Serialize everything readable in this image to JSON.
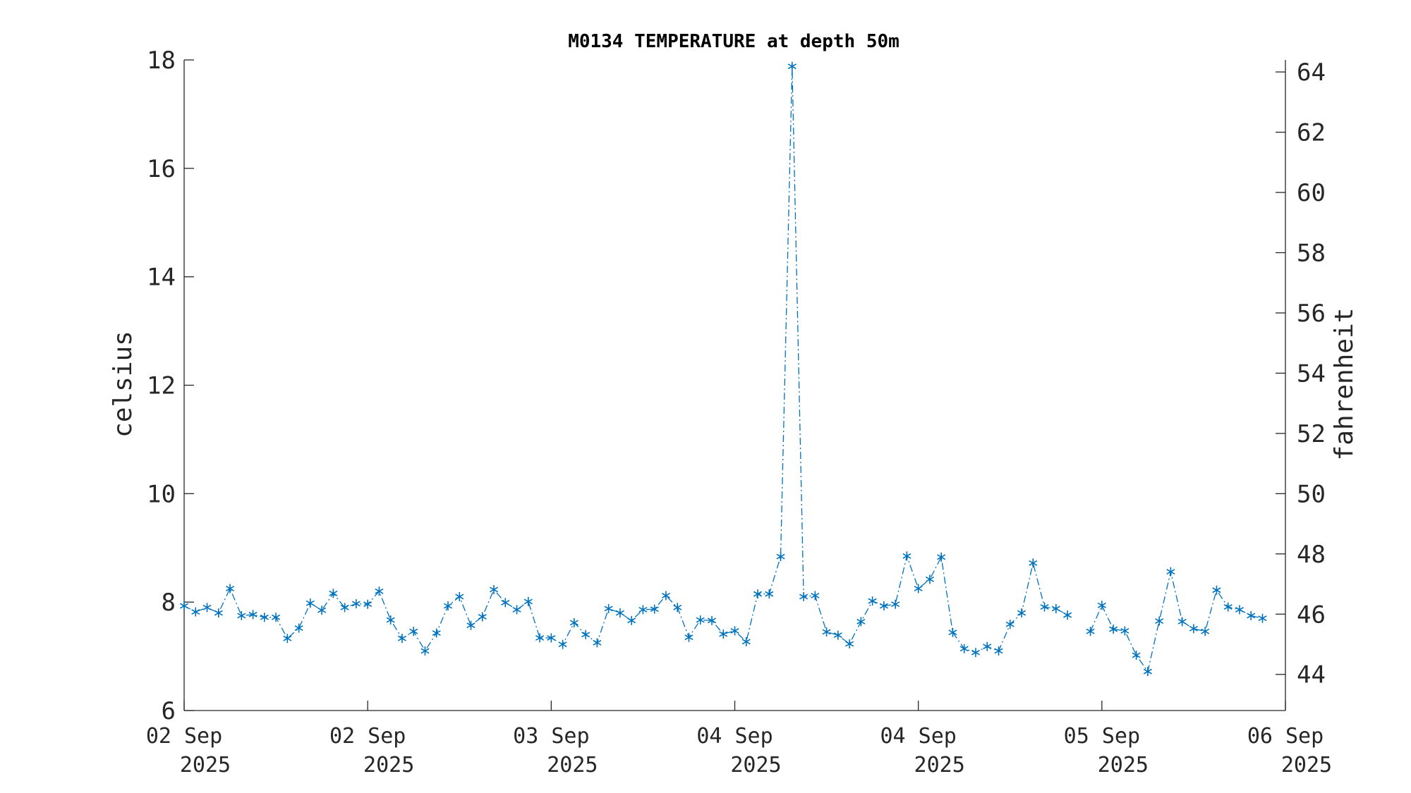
{
  "chart_data": {
    "type": "line",
    "title": "M0134 TEMPERATURE at depth 50m",
    "xlabel": "",
    "ylabel": "celsius",
    "y2label": "fahrenheit",
    "ylim": [
      6,
      18
    ],
    "y2lim": [
      42.8,
      64.4
    ],
    "yticks": [
      6,
      8,
      10,
      12,
      14,
      16,
      18
    ],
    "y2ticks": [
      44,
      46,
      48,
      50,
      52,
      54,
      56,
      58,
      60,
      62,
      64
    ],
    "xlim_hours": [
      0,
      96
    ],
    "xticks": [
      {
        "hour": 0,
        "line1": "02 Sep",
        "line2": "2025"
      },
      {
        "hour": 16,
        "line1": "02 Sep",
        "line2": "2025"
      },
      {
        "hour": 32,
        "line1": "03 Sep",
        "line2": "2025"
      },
      {
        "hour": 48,
        "line1": "04 Sep",
        "line2": "2025"
      },
      {
        "hour": 64,
        "line1": "04 Sep",
        "line2": "2025"
      },
      {
        "hour": 80,
        "line1": "05 Sep",
        "line2": "2025"
      },
      {
        "hour": 96,
        "line1": "06 Sep",
        "line2": "2025"
      }
    ],
    "grid": false,
    "marker": "asterisk",
    "line_style": "dash-dot",
    "color": "#0072BD",
    "series": [
      {
        "segments": [
          [
            [
              0,
              7.93
            ],
            [
              1,
              7.82
            ],
            [
              2,
              7.9
            ],
            [
              3,
              7.8
            ],
            [
              4,
              8.25
            ],
            [
              5,
              7.75
            ],
            [
              6,
              7.77
            ],
            [
              7,
              7.72
            ],
            [
              8,
              7.72
            ],
            [
              9,
              7.33
            ],
            [
              10,
              7.52
            ],
            [
              11,
              7.98
            ],
            [
              12,
              7.85
            ],
            [
              13,
              8.16
            ],
            [
              14,
              7.9
            ],
            [
              15,
              7.97
            ],
            [
              16,
              7.96
            ],
            [
              17,
              8.2
            ],
            [
              18,
              7.67
            ],
            [
              19,
              7.33
            ],
            [
              20,
              7.46
            ],
            [
              21,
              7.1
            ],
            [
              22,
              7.43
            ],
            [
              23,
              7.93
            ],
            [
              24,
              8.1
            ],
            [
              25,
              7.57
            ],
            [
              26,
              7.73
            ],
            [
              27,
              8.23
            ],
            [
              28,
              7.99
            ],
            [
              29,
              7.86
            ],
            [
              30,
              8.01
            ],
            [
              31,
              7.34
            ],
            [
              32,
              7.34
            ],
            [
              33,
              7.22
            ],
            [
              34,
              7.62
            ],
            [
              35,
              7.4
            ],
            [
              36,
              7.25
            ],
            [
              37,
              7.88
            ],
            [
              38,
              7.8
            ],
            [
              39,
              7.66
            ],
            [
              40,
              7.86
            ],
            [
              41,
              7.87
            ],
            [
              42,
              8.12
            ],
            [
              43,
              7.9
            ],
            [
              44,
              7.35
            ],
            [
              45,
              7.67
            ],
            [
              46,
              7.66
            ],
            [
              47,
              7.41
            ],
            [
              48,
              7.47
            ],
            [
              49,
              7.27
            ],
            [
              50,
              8.15
            ],
            [
              51,
              8.15
            ],
            [
              52,
              8.84
            ],
            [
              53,
              17.88
            ],
            [
              54,
              8.1
            ],
            [
              55,
              8.12
            ],
            [
              56,
              7.45
            ],
            [
              57,
              7.39
            ],
            [
              58,
              7.23
            ],
            [
              59,
              7.64
            ],
            [
              60,
              8.02
            ],
            [
              61,
              7.93
            ],
            [
              62,
              7.96
            ],
            [
              63,
              8.85
            ],
            [
              64,
              8.25
            ],
            [
              65,
              8.42
            ],
            [
              66,
              8.83
            ],
            [
              67,
              7.44
            ],
            [
              68,
              7.14
            ],
            [
              69,
              7.07
            ],
            [
              70,
              7.18
            ],
            [
              71,
              7.1
            ],
            [
              72,
              7.59
            ],
            [
              73,
              7.8
            ],
            [
              74,
              8.72
            ],
            [
              75,
              7.91
            ],
            [
              76,
              7.88
            ],
            [
              77,
              7.76
            ]
          ],
          [
            [
              79,
              7.46
            ],
            [
              80,
              7.94
            ],
            [
              81,
              7.5
            ],
            [
              82,
              7.47
            ],
            [
              83,
              7.02
            ],
            [
              84,
              6.72
            ],
            [
              85,
              7.65
            ],
            [
              86,
              8.56
            ],
            [
              87,
              7.64
            ],
            [
              88,
              7.51
            ],
            [
              89,
              7.46
            ],
            [
              90,
              8.22
            ],
            [
              91,
              7.91
            ],
            [
              92,
              7.86
            ],
            [
              93,
              7.75
            ],
            [
              94,
              7.7
            ]
          ]
        ]
      }
    ]
  }
}
